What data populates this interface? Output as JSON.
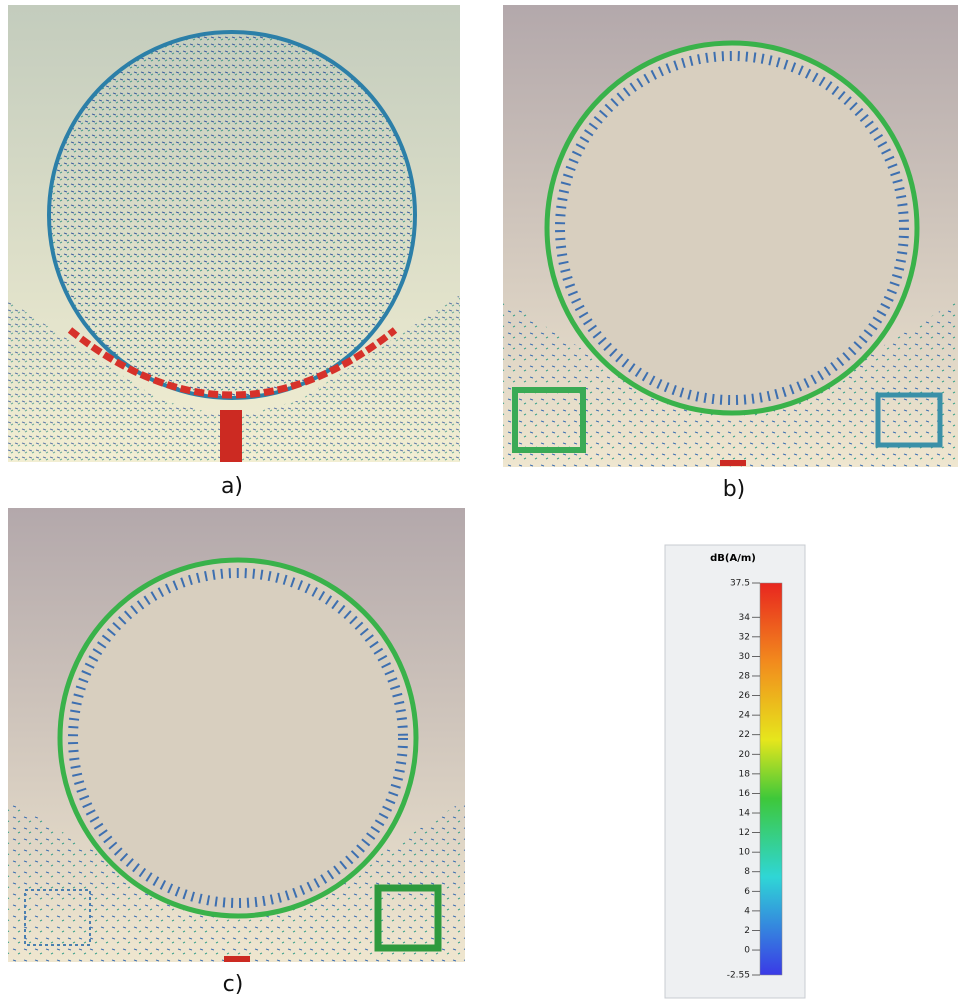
{
  "panels": [
    {
      "label": "a)"
    },
    {
      "label": "b)"
    },
    {
      "label": "c)"
    }
  ],
  "colorbar": {
    "title": "dB(A/m)",
    "lim": [
      -2.55,
      37.5
    ],
    "ticks": [
      37.5,
      34,
      32,
      30,
      28,
      26,
      24,
      22,
      20,
      18,
      16,
      14,
      12,
      10,
      8,
      6,
      4,
      2,
      0,
      -2.55
    ]
  }
}
